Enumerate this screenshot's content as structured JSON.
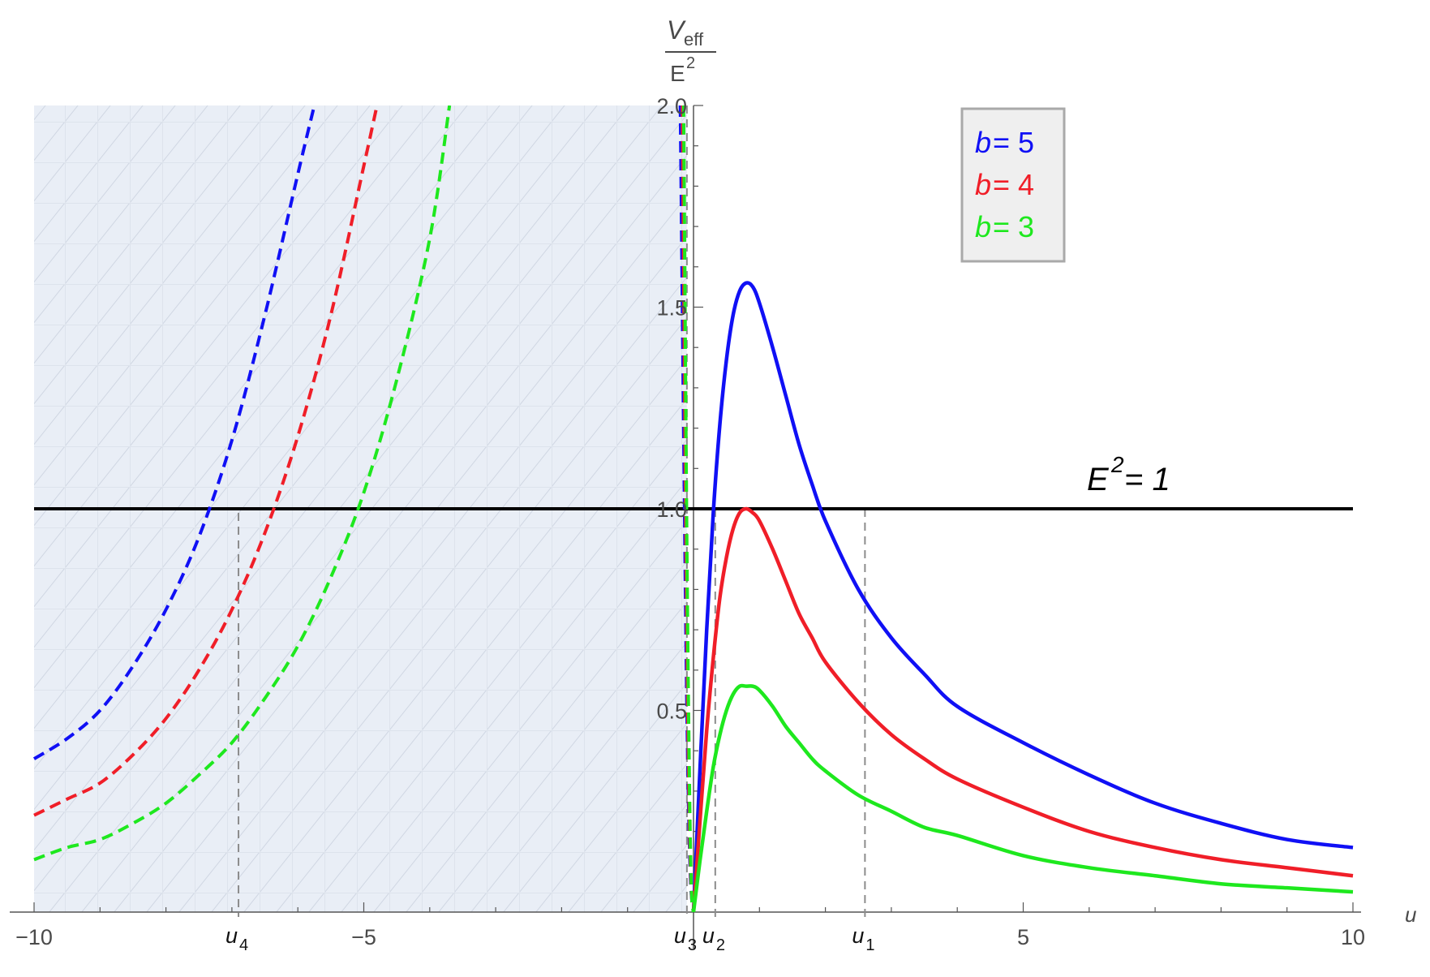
{
  "chart_data": {
    "type": "line",
    "xlabel": "u",
    "ylabel": {
      "numerator_main": "V",
      "numerator_sub": "eff",
      "denominator_main": "E",
      "denominator_sup": "2"
    },
    "xlim": [
      -10,
      10
    ],
    "ylim": [
      0,
      2.0
    ],
    "x_ticks": [
      {
        "value": -10,
        "label": "−10"
      },
      {
        "value": -5,
        "label": "−5"
      },
      {
        "value": 5,
        "label": "5"
      },
      {
        "value": 10,
        "label": "10"
      }
    ],
    "y_ticks": [
      {
        "value": 0.5,
        "label": "0.5"
      },
      {
        "value": 1.0,
        "label": "1.0"
      },
      {
        "value": 1.5,
        "label": "1.5"
      },
      {
        "value": 2.0,
        "label": "2.0"
      }
    ],
    "shaded_region": {
      "x_from": -10,
      "x_to": -0.1,
      "style": "hatched",
      "color": "#e8eef6"
    },
    "reference_line": {
      "y": 1.0,
      "label_main": "E",
      "label_sup": "2",
      "label_rest": " = 1",
      "color": "#000000"
    },
    "series": [
      {
        "name": "b = 5",
        "legend_var": "b",
        "legend_rest": " = 5",
        "color": "#1010f5",
        "right_branch": [
          [
            0,
            0
          ],
          [
            0.1,
            0.36
          ],
          [
            0.2,
            0.7
          ],
          [
            0.3,
            0.99
          ],
          [
            0.4,
            1.21
          ],
          [
            0.5,
            1.37
          ],
          [
            0.6,
            1.48
          ],
          [
            0.7,
            1.54
          ],
          [
            0.8,
            1.56
          ],
          [
            0.9,
            1.55
          ],
          [
            1.0,
            1.51
          ],
          [
            1.2,
            1.4
          ],
          [
            1.4,
            1.28
          ],
          [
            1.6,
            1.16
          ],
          [
            1.8,
            1.06
          ],
          [
            2.0,
            0.97
          ],
          [
            2.5,
            0.8
          ],
          [
            3,
            0.68
          ],
          [
            3.5,
            0.59
          ],
          [
            4,
            0.51
          ],
          [
            5,
            0.42
          ],
          [
            6,
            0.34
          ],
          [
            7,
            0.27
          ],
          [
            8,
            0.22
          ],
          [
            9,
            0.18
          ],
          [
            10,
            0.16
          ]
        ],
        "left_branch": [
          [
            -10,
            0.38
          ],
          [
            -9.5,
            0.43
          ],
          [
            -9,
            0.5
          ],
          [
            -8.5,
            0.61
          ],
          [
            -8,
            0.75
          ],
          [
            -7.5,
            0.93
          ],
          [
            -7,
            1.17
          ],
          [
            -6.5,
            1.48
          ],
          [
            -6,
            1.83
          ],
          [
            -5.75,
            2.0
          ]
        ],
        "inner_branch": [
          [
            -0.2,
            2.0
          ],
          [
            -0.15,
            1.2
          ],
          [
            -0.1,
            0.5
          ],
          [
            -0.05,
            0.1
          ],
          [
            0,
            0
          ]
        ]
      },
      {
        "name": "b = 4",
        "legend_var": "b",
        "legend_rest": " = 4",
        "color": "#f01e28",
        "right_branch": [
          [
            0,
            0
          ],
          [
            0.1,
            0.23
          ],
          [
            0.2,
            0.45
          ],
          [
            0.3,
            0.63
          ],
          [
            0.4,
            0.78
          ],
          [
            0.5,
            0.88
          ],
          [
            0.6,
            0.95
          ],
          [
            0.7,
            0.99
          ],
          [
            0.8,
            1.0
          ],
          [
            0.9,
            0.99
          ],
          [
            1.0,
            0.97
          ],
          [
            1.2,
            0.9
          ],
          [
            1.4,
            0.82
          ],
          [
            1.6,
            0.74
          ],
          [
            1.8,
            0.68
          ],
          [
            2.0,
            0.62
          ],
          [
            2.5,
            0.52
          ],
          [
            3,
            0.44
          ],
          [
            3.5,
            0.38
          ],
          [
            4,
            0.33
          ],
          [
            5,
            0.26
          ],
          [
            6,
            0.2
          ],
          [
            7,
            0.16
          ],
          [
            8,
            0.13
          ],
          [
            9,
            0.11
          ],
          [
            10,
            0.09
          ]
        ],
        "left_branch": [
          [
            -10,
            0.24
          ],
          [
            -9.5,
            0.28
          ],
          [
            -9,
            0.32
          ],
          [
            -8.5,
            0.39
          ],
          [
            -8,
            0.48
          ],
          [
            -7.5,
            0.6
          ],
          [
            -7,
            0.75
          ],
          [
            -6.5,
            0.94
          ],
          [
            -6,
            1.18
          ],
          [
            -5.5,
            1.48
          ],
          [
            -5,
            1.85
          ],
          [
            -4.8,
            2.0
          ]
        ],
        "inner_branch": [
          [
            -0.17,
            2.0
          ],
          [
            -0.12,
            1.0
          ],
          [
            -0.08,
            0.4
          ],
          [
            -0.04,
            0.08
          ],
          [
            0,
            0
          ]
        ]
      },
      {
        "name": "b = 3",
        "legend_var": "b",
        "legend_rest": " = 3",
        "color": "#1ee81e",
        "right_branch": [
          [
            0,
            0
          ],
          [
            0.1,
            0.13
          ],
          [
            0.2,
            0.25
          ],
          [
            0.3,
            0.36
          ],
          [
            0.4,
            0.44
          ],
          [
            0.5,
            0.5
          ],
          [
            0.6,
            0.54
          ],
          [
            0.7,
            0.56
          ],
          [
            0.8,
            0.56
          ],
          [
            0.9,
            0.56
          ],
          [
            1.0,
            0.55
          ],
          [
            1.2,
            0.51
          ],
          [
            1.4,
            0.46
          ],
          [
            1.6,
            0.42
          ],
          [
            1.8,
            0.38
          ],
          [
            2.0,
            0.35
          ],
          [
            2.5,
            0.29
          ],
          [
            3,
            0.25
          ],
          [
            3.5,
            0.21
          ],
          [
            4,
            0.19
          ],
          [
            5,
            0.14
          ],
          [
            6,
            0.11
          ],
          [
            7,
            0.09
          ],
          [
            8,
            0.07
          ],
          [
            9,
            0.06
          ],
          [
            10,
            0.05
          ]
        ],
        "left_branch": [
          [
            -10,
            0.13
          ],
          [
            -9.5,
            0.16
          ],
          [
            -9,
            0.18
          ],
          [
            -8.5,
            0.22
          ],
          [
            -8,
            0.27
          ],
          [
            -7.5,
            0.34
          ],
          [
            -7,
            0.42
          ],
          [
            -6.5,
            0.53
          ],
          [
            -6,
            0.66
          ],
          [
            -5.5,
            0.83
          ],
          [
            -5,
            1.04
          ],
          [
            -4.5,
            1.32
          ],
          [
            -4,
            1.67
          ],
          [
            -3.7,
            2.0
          ]
        ],
        "inner_branch": [
          [
            -0.15,
            2.0
          ],
          [
            -0.1,
            0.9
          ],
          [
            -0.06,
            0.3
          ],
          [
            -0.03,
            0.05
          ],
          [
            0,
            0
          ]
        ]
      }
    ],
    "markers": [
      {
        "label": "u",
        "sub": "4",
        "x": -6.9,
        "y": 0.99
      },
      {
        "label": "u",
        "sub": "3",
        "x": -0.1,
        "y": 2.0
      },
      {
        "label": "u",
        "sub": "2",
        "x": 0.33,
        "y": 1.0
      },
      {
        "label": "u",
        "sub": "1",
        "x": 2.6,
        "y": 1.0
      }
    ],
    "legend_position": "top-right"
  }
}
